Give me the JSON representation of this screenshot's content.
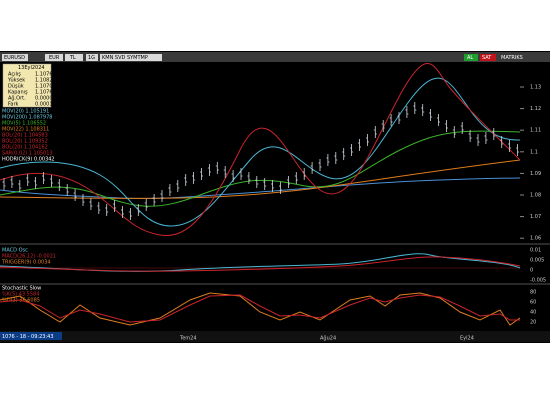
{
  "toolbar": {
    "symbol": "EURUSD",
    "currency1": "EUR",
    "currency2": "TL",
    "period": "1G",
    "tools": "KMN SVD SYMTMP",
    "buy": "AL",
    "sell": "SAT",
    "brand": "MATRIKS"
  },
  "info_box": {
    "date": "13Eyl2024",
    "rows": [
      [
        "Açılış",
        "1.1076"
      ],
      [
        "Yüksek",
        "1.1082"
      ],
      [
        "Düşük",
        "1.1070"
      ],
      [
        "Kapanış",
        "1.1076"
      ],
      [
        "Ağ.Ort.",
        "0.0000"
      ],
      [
        "Fark",
        "0.0001"
      ]
    ]
  },
  "indicators": [
    "MOV(20)  1.105191",
    "MOV(200)  1.087978",
    "MOV(5)  1.106552",
    "MOV(22)  1.108311",
    "BOL(20)  1.104583",
    "BOL(20)  1.109352",
    "BOL(20)  1.104162",
    "SAR(0.02)  1.105013",
    "HODRICK(9)  0.00342"
  ],
  "price_axis": [
    "1.13",
    "1.12",
    "1.11",
    "1.1",
    "1.09",
    "1.08",
    "1.07",
    "1.06"
  ],
  "macd_panel": {
    "title": "MACD Osc",
    "lines": [
      "MACD(26,12)  -0.0021",
      "TRIGGER(9)  0.0034"
    ],
    "axis": [
      "0.01",
      "0.005",
      "0",
      "-0.005"
    ]
  },
  "stoch_panel": {
    "title": "Stochastic Slow",
    "lines": [
      "%K(5)  43.5584",
      "%D(3)  36.6085"
    ],
    "axis": [
      "80",
      "60",
      "40",
      "20"
    ]
  },
  "date_bar": {
    "status": "1076 - 18 - 09:23:43",
    "labels": [
      "Tem24",
      "Ağu24",
      "Eyl24"
    ]
  }
}
